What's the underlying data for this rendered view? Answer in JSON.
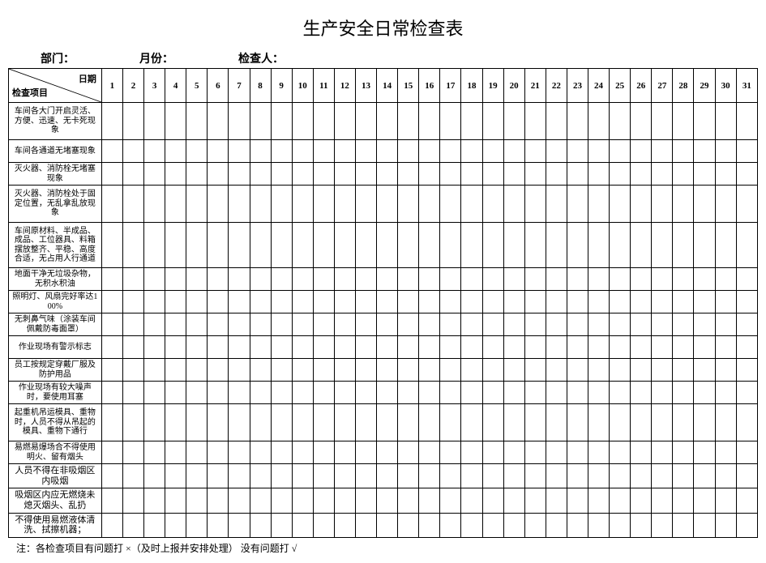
{
  "title": "生产安全日常检查表",
  "header": {
    "dept_label": "部门：",
    "month_label": "月份：",
    "inspector_label": "检查人："
  },
  "corner": {
    "top": "日期",
    "bottom": "检查项目"
  },
  "days": [
    "1",
    "2",
    "3",
    "4",
    "5",
    "6",
    "7",
    "8",
    "9",
    "10",
    "11",
    "12",
    "13",
    "14",
    "15",
    "16",
    "17",
    "18",
    "19",
    "20",
    "21",
    "22",
    "23",
    "24",
    "25",
    "26",
    "27",
    "28",
    "29",
    "30",
    "31"
  ],
  "rows": [
    {
      "label": "车间各大门开启灵活、方便、迅速、无卡死现象",
      "height": "tall"
    },
    {
      "label": "车间各通道无堵塞现象",
      "height": ""
    },
    {
      "label": "灭火器、消防栓无堵塞现象",
      "height": ""
    },
    {
      "label": "灭火器、消防栓处于固定位置，无乱拿乱放现象",
      "height": "tall"
    },
    {
      "label": "车间原材料、半成品、成品、工位器具、料箱摆放整齐、平稳、高度合适，无占用人行通道",
      "height": "taller"
    },
    {
      "label": "地面干净无垃圾杂物，无积水积油",
      "height": ""
    },
    {
      "label": "照明灯、风扇完好率达100%",
      "height": ""
    },
    {
      "label": "无刺鼻气味（涂装车间佩戴防毒面罩）",
      "height": ""
    },
    {
      "label": "作业现场有警示标志",
      "height": ""
    },
    {
      "label": "员工按规定穿戴厂服及防护用品",
      "height": ""
    },
    {
      "label": "作业现场有较大噪声时，要使用耳塞",
      "height": ""
    },
    {
      "label": "起重机吊运模具、重物时，人员不得从吊起的模具、重物下通行",
      "height": "tall"
    },
    {
      "label": "易燃易爆场合不得使用明火、留有烟头",
      "height": ""
    },
    {
      "label": "人员不得在非吸烟区内吸烟",
      "height": "",
      "big": true
    },
    {
      "label": "吸烟区内应无燃烧未熄灭烟头、乱扔",
      "height": "",
      "big": true
    },
    {
      "label": "不得使用易燃液体清洗、拭擦机器；",
      "height": "",
      "big": true
    }
  ],
  "footnote": "注：各检查项目有问题打 ×（及时上报并安排处理）  没有问题打 √",
  "colors": {
    "border": "#000000",
    "background": "#ffffff",
    "text": "#000000"
  }
}
